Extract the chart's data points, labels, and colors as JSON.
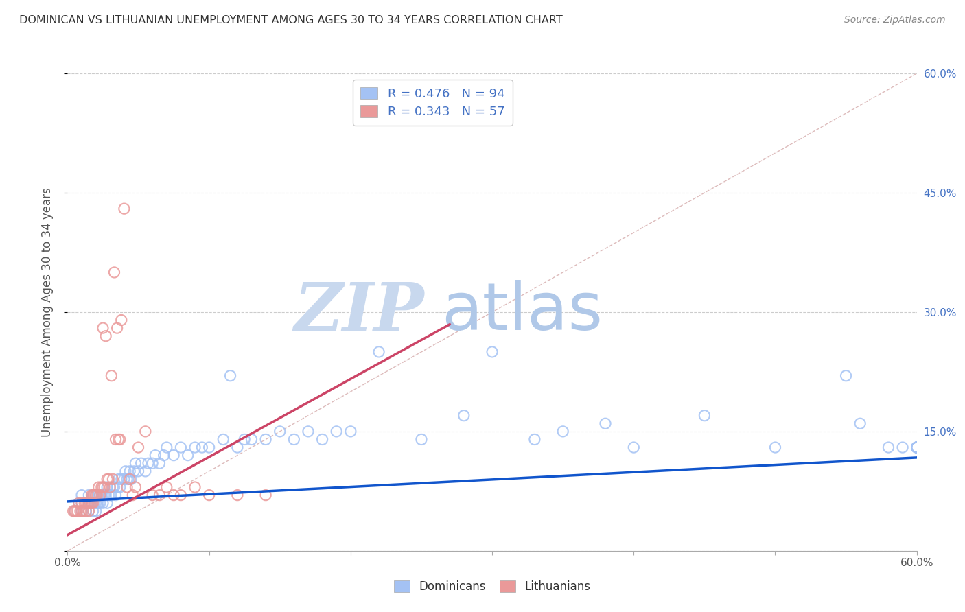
{
  "title": "DOMINICAN VS LITHUANIAN UNEMPLOYMENT AMONG AGES 30 TO 34 YEARS CORRELATION CHART",
  "source": "Source: ZipAtlas.com",
  "ylabel": "Unemployment Among Ages 30 to 34 years",
  "xlim": [
    0.0,
    0.6
  ],
  "ylim": [
    0.0,
    0.6
  ],
  "blue_color": "#a4c2f4",
  "pink_color": "#ea9999",
  "blue_line_color": "#1155cc",
  "pink_line_color": "#cc4466",
  "diagonal_color": "#ddbbbb",
  "watermark_zip_color": "#c5d8f0",
  "watermark_atlas_color": "#b8ccee",
  "legend_label1": "Dominicans",
  "legend_label2": "Lithuanians",
  "blue_intercept": 0.062,
  "blue_slope": 0.092,
  "pink_intercept": 0.02,
  "pink_slope": 0.98,
  "pink_line_end_x": 0.27,
  "blue_x": [
    0.005,
    0.008,
    0.01,
    0.01,
    0.01,
    0.013,
    0.015,
    0.015,
    0.015,
    0.016,
    0.017,
    0.018,
    0.018,
    0.019,
    0.02,
    0.02,
    0.02,
    0.021,
    0.022,
    0.022,
    0.023,
    0.024,
    0.025,
    0.025,
    0.026,
    0.027,
    0.028,
    0.028,
    0.029,
    0.03,
    0.031,
    0.032,
    0.033,
    0.034,
    0.035,
    0.036,
    0.037,
    0.038,
    0.04,
    0.041,
    0.042,
    0.043,
    0.044,
    0.045,
    0.047,
    0.048,
    0.05,
    0.052,
    0.055,
    0.057,
    0.06,
    0.062,
    0.065,
    0.068,
    0.07,
    0.075,
    0.08,
    0.085,
    0.09,
    0.095,
    0.1,
    0.11,
    0.115,
    0.12,
    0.125,
    0.13,
    0.14,
    0.15,
    0.16,
    0.17,
    0.18,
    0.19,
    0.2,
    0.22,
    0.25,
    0.28,
    0.3,
    0.33,
    0.35,
    0.38,
    0.4,
    0.45,
    0.5,
    0.55,
    0.56,
    0.58,
    0.59,
    0.6,
    0.6,
    0.6,
    0.6,
    0.6,
    0.6,
    0.6
  ],
  "blue_y": [
    0.05,
    0.06,
    0.05,
    0.06,
    0.07,
    0.05,
    0.05,
    0.06,
    0.07,
    0.06,
    0.06,
    0.05,
    0.07,
    0.06,
    0.05,
    0.06,
    0.07,
    0.06,
    0.06,
    0.07,
    0.06,
    0.07,
    0.06,
    0.07,
    0.07,
    0.07,
    0.06,
    0.08,
    0.07,
    0.07,
    0.07,
    0.08,
    0.08,
    0.07,
    0.08,
    0.09,
    0.08,
    0.09,
    0.09,
    0.1,
    0.09,
    0.09,
    0.1,
    0.09,
    0.1,
    0.11,
    0.1,
    0.11,
    0.1,
    0.11,
    0.11,
    0.12,
    0.11,
    0.12,
    0.13,
    0.12,
    0.13,
    0.12,
    0.13,
    0.13,
    0.13,
    0.14,
    0.22,
    0.13,
    0.14,
    0.14,
    0.14,
    0.15,
    0.14,
    0.15,
    0.14,
    0.15,
    0.15,
    0.25,
    0.14,
    0.17,
    0.25,
    0.14,
    0.15,
    0.16,
    0.13,
    0.17,
    0.13,
    0.22,
    0.16,
    0.13,
    0.13,
    0.13,
    0.13,
    0.13,
    0.13,
    0.13,
    0.13,
    0.13
  ],
  "pink_x": [
    0.004,
    0.005,
    0.006,
    0.007,
    0.008,
    0.009,
    0.01,
    0.01,
    0.011,
    0.012,
    0.013,
    0.013,
    0.014,
    0.015,
    0.015,
    0.016,
    0.017,
    0.017,
    0.018,
    0.018,
    0.019,
    0.02,
    0.021,
    0.022,
    0.023,
    0.024,
    0.025,
    0.025,
    0.026,
    0.027,
    0.028,
    0.029,
    0.03,
    0.031,
    0.032,
    0.033,
    0.034,
    0.035,
    0.036,
    0.037,
    0.038,
    0.04,
    0.042,
    0.044,
    0.046,
    0.048,
    0.05,
    0.055,
    0.06,
    0.065,
    0.07,
    0.075,
    0.08,
    0.09,
    0.1,
    0.12,
    0.14
  ],
  "pink_y": [
    0.05,
    0.05,
    0.05,
    0.05,
    0.06,
    0.05,
    0.05,
    0.06,
    0.05,
    0.06,
    0.05,
    0.06,
    0.06,
    0.05,
    0.06,
    0.06,
    0.07,
    0.06,
    0.06,
    0.07,
    0.07,
    0.07,
    0.07,
    0.08,
    0.07,
    0.08,
    0.08,
    0.28,
    0.08,
    0.27,
    0.09,
    0.09,
    0.08,
    0.22,
    0.09,
    0.35,
    0.14,
    0.28,
    0.14,
    0.14,
    0.29,
    0.43,
    0.08,
    0.09,
    0.07,
    0.08,
    0.13,
    0.15,
    0.07,
    0.07,
    0.08,
    0.07,
    0.07,
    0.08,
    0.07,
    0.07,
    0.07
  ]
}
